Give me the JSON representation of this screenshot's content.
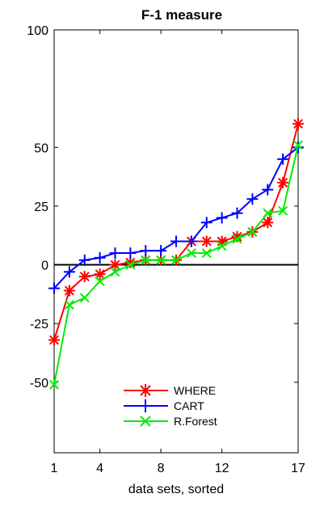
{
  "chart_data": {
    "type": "line",
    "title": "F-1 measure",
    "xlabel": "data sets, sorted",
    "ylabel": "",
    "x": [
      1,
      2,
      3,
      4,
      5,
      6,
      7,
      8,
      9,
      10,
      11,
      12,
      13,
      14,
      15,
      16,
      17
    ],
    "xlim": [
      1,
      17
    ],
    "ylim": [
      -80,
      100
    ],
    "x_ticks": [
      {
        "value": 1,
        "label": "1"
      },
      {
        "value": 4,
        "label": "4"
      },
      {
        "value": 8,
        "label": "8"
      },
      {
        "value": 12,
        "label": "12"
      },
      {
        "value": 17,
        "label": "17"
      }
    ],
    "y_ticks": [
      {
        "value": 100,
        "label": "100"
      },
      {
        "value": 50,
        "label": "50"
      },
      {
        "value": 25,
        "label": "25"
      },
      {
        "value": 0,
        "label": "0"
      },
      {
        "value": -25,
        "label": "-25"
      },
      {
        "value": -50,
        "label": "-50"
      }
    ],
    "zero_line": true,
    "grid": false,
    "legend_position": "bottom-center",
    "series": [
      {
        "name": "WHERE",
        "color": "#ff0000",
        "marker": "asterisk",
        "values": [
          -32,
          -11,
          -5,
          -4,
          0,
          1,
          2,
          2,
          2,
          10,
          10,
          10,
          12,
          14,
          18,
          35,
          60
        ]
      },
      {
        "name": "CART",
        "color": "#0000ff",
        "marker": "plus",
        "values": [
          -10,
          -3,
          2,
          3,
          5,
          5,
          6,
          6,
          10,
          10,
          18,
          20,
          22,
          28,
          32,
          45,
          50
        ]
      },
      {
        "name": "R.Forest",
        "color": "#00ee00",
        "marker": "x",
        "values": [
          -51,
          -17,
          -14,
          -7,
          -3,
          0,
          2,
          2,
          2,
          5,
          5,
          8,
          11,
          14,
          22,
          23,
          51
        ]
      }
    ]
  }
}
